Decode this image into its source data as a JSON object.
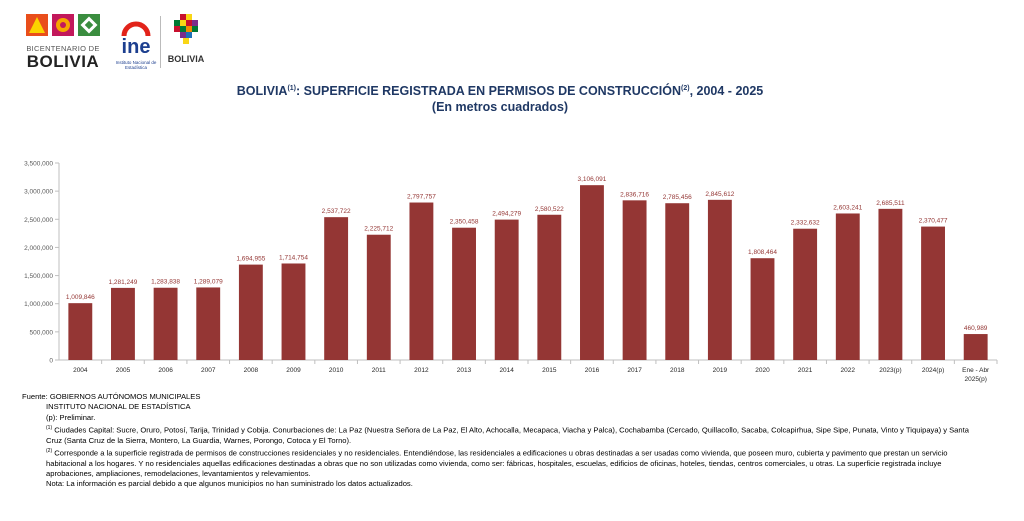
{
  "header": {
    "logo_bicentenario_small": "BICENTENARIO DE",
    "logo_bicentenario_big": "BOLIVIA",
    "logo_ine_text": "ine",
    "logo_ine_sub": "Instituto Nacional de Estadística",
    "logo_bolivia_text": "BOLIVIA"
  },
  "title": {
    "part1": "BOLIVIA",
    "sup1": "(1)",
    "part2": ": SUPERFICIE REGISTRADA EN PERMISOS DE CONSTRUCCIÓN",
    "sup2": "(2)",
    "part3": ", 2004 - 2025",
    "subtitle": "(En metros cuadrados)"
  },
  "chart_data": {
    "type": "bar",
    "categories": [
      "2004",
      "2005",
      "2006",
      "2007",
      "2008",
      "2009",
      "2010",
      "2011",
      "2012",
      "2013",
      "2014",
      "2015",
      "2016",
      "2017",
      "2018",
      "2019",
      "2020",
      "2021",
      "2022",
      "2023(p)",
      "2024(p)",
      "Ene - Abr 2025(p)"
    ],
    "values": [
      1009846,
      1281249,
      1283838,
      1289079,
      1694955,
      1714754,
      2537722,
      2225712,
      2797757,
      2350458,
      2494279,
      2580522,
      3106091,
      2836716,
      2785456,
      2845612,
      1808464,
      2332632,
      2603241,
      2685511,
      2370477,
      460989
    ],
    "data_labels": [
      "1,009,846",
      "1,281,249",
      "1,283,838",
      "1,289,079",
      "1,694,955",
      "1,714,754",
      "2,537,722",
      "2,225,712",
      "2,797,757",
      "2,350,458",
      "2,494,279",
      "2,580,522",
      "3,106,091",
      "2,836,716",
      "2,785,456",
      "2,845,612",
      "1,808,464",
      "2,332,632",
      "2,603,241",
      "2,685,511",
      "2,370,477",
      "460,989"
    ],
    "y_ticks": [
      "0",
      "500,000",
      "1,000,000",
      "1,500,000",
      "2,000,000",
      "2,500,000",
      "3,000,000",
      "3,500,000"
    ],
    "ylim": [
      0,
      3500000
    ],
    "grid": false,
    "bar_color": "#943634",
    "label_color": "#943634",
    "title": "",
    "xlabel": "",
    "ylabel": ""
  },
  "notes": {
    "source_label": "Fuente:",
    "source_1": "GOBIERNOS AUTÓNOMOS MUNICIPALES",
    "source_2": "INSTITUTO NACIONAL DE ESTADÍSTICA",
    "preliminary": "(p): Preliminar.",
    "note1_mark": "(1)",
    "note1": "Ciudades Capital: Sucre, Oruro, Potosí, Tarija, Trinidad y Cobija. Conurbaciones de: La Paz (Nuestra Señora de La Paz, El Alto, Achocalla, Mecapaca, Viacha y Palca), Cochabamba (Cercado, Quillacollo, Sacaba, Colcapirhua, Sipe Sipe, Punata, Vinto y Tiquipaya) y Santa Cruz (Santa Cruz de la Sierra, Montero, La Guardia, Warnes, Porongo, Cotoca y El Torno).",
    "note2_mark": "(2)",
    "note2": "Corresponde a la superficie registrada de permisos de construcciones residenciales y no residenciales. Entendiéndose, las residenciales a edificaciones u obras destinadas a ser usadas como vivienda, que poseen muro, cubierta y pavimento que prestan un servicio habitacional a los hogares. Y no residenciales aquellas edificaciones destinadas a obras que no son utilizadas como vivienda, como ser: fábricas, hospitales, escuelas, edificios de oficinas, hoteles, tiendas, centros comerciales, u otras. La superficie registrada incluye aprobaciones, ampliaciones, remodelaciones, levantamientos y relevamientos.",
    "note3": "Nota: La información es parcial debido a que algunos municipios no han suministrado los datos actualizados."
  }
}
